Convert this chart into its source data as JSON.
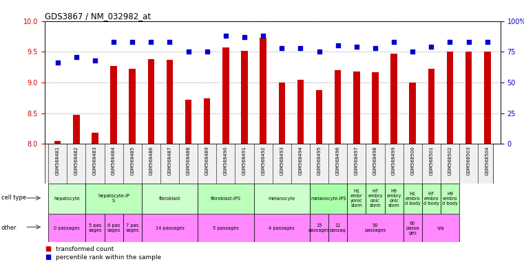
{
  "title": "GDS3867 / NM_032982_at",
  "samples": [
    "GSM568481",
    "GSM568482",
    "GSM568483",
    "GSM568484",
    "GSM568485",
    "GSM568486",
    "GSM568487",
    "GSM568488",
    "GSM568489",
    "GSM568490",
    "GSM568491",
    "GSM568492",
    "GSM568493",
    "GSM568494",
    "GSM568495",
    "GSM568496",
    "GSM568497",
    "GSM568498",
    "GSM568499",
    "GSM568500",
    "GSM568501",
    "GSM568502",
    "GSM568503",
    "GSM568504"
  ],
  "transformed_count": [
    8.05,
    8.47,
    8.18,
    9.27,
    9.22,
    9.38,
    9.37,
    8.72,
    8.74,
    9.57,
    9.52,
    9.73,
    9.0,
    9.05,
    8.88,
    9.2,
    9.18,
    9.17,
    9.47,
    9.0,
    9.22,
    9.5,
    9.5,
    9.5
  ],
  "percentile_rank": [
    66,
    71,
    68,
    83,
    83,
    83,
    83,
    75,
    75,
    88,
    87,
    88,
    78,
    78,
    75,
    80,
    79,
    78,
    83,
    75,
    79,
    83,
    83,
    83
  ],
  "ylim_left": [
    8.0,
    10.0
  ],
  "ylim_right": [
    0,
    100
  ],
  "yticks_left": [
    8.0,
    8.5,
    9.0,
    9.5,
    10.0
  ],
  "yticks_right": [
    0,
    25,
    50,
    75,
    100
  ],
  "bar_color": "#cc0000",
  "dot_color": "#0000cc",
  "bg_color": "#ffffff",
  "grid_color": "#888888",
  "tick_label_color_left": "#cc0000",
  "tick_label_color_right": "#0000cc",
  "ct_groups": [
    {
      "label": "hepatocyte",
      "start": 0,
      "end": 1,
      "color": "#ccffcc"
    },
    {
      "label": "hepatocyte-iP\nS",
      "start": 2,
      "end": 4,
      "color": "#bbffbb"
    },
    {
      "label": "fibroblast",
      "start": 5,
      "end": 7,
      "color": "#ccffcc"
    },
    {
      "label": "fibroblast-IPS",
      "start": 8,
      "end": 10,
      "color": "#bbffbb"
    },
    {
      "label": "melanocyte",
      "start": 11,
      "end": 13,
      "color": "#ccffcc"
    },
    {
      "label": "melanocyte-IPS",
      "start": 14,
      "end": 15,
      "color": "#aaffaa"
    },
    {
      "label": "H1\nembr\nyonic\nstem",
      "start": 16,
      "end": 16,
      "color": "#bbffbb"
    },
    {
      "label": "H7\nembry\nonic\nstem",
      "start": 17,
      "end": 17,
      "color": "#bbffbb"
    },
    {
      "label": "H9\nembry\nonic\nstem",
      "start": 18,
      "end": 18,
      "color": "#bbffbb"
    },
    {
      "label": "H1\nembro\nd body",
      "start": 19,
      "end": 19,
      "color": "#bbffbb"
    },
    {
      "label": "H7\nembro\nd body",
      "start": 20,
      "end": 20,
      "color": "#bbffbb"
    },
    {
      "label": "H9\nembro\nd body",
      "start": 21,
      "end": 21,
      "color": "#bbffbb"
    }
  ],
  "ot_groups": [
    {
      "label": "0 passages",
      "start": 0,
      "end": 1,
      "color": "#ff88ff"
    },
    {
      "label": "5 pas\nsages",
      "start": 2,
      "end": 2,
      "color": "#ff88ff"
    },
    {
      "label": "6 pas\nsages",
      "start": 3,
      "end": 3,
      "color": "#ff88ff"
    },
    {
      "label": "7 pas\nsages",
      "start": 4,
      "end": 4,
      "color": "#ff88ff"
    },
    {
      "label": "14 passages",
      "start": 5,
      "end": 7,
      "color": "#ff88ff"
    },
    {
      "label": "5 passages",
      "start": 8,
      "end": 10,
      "color": "#ff88ff"
    },
    {
      "label": "4 passages",
      "start": 11,
      "end": 13,
      "color": "#ff88ff"
    },
    {
      "label": "15\npassages",
      "start": 14,
      "end": 14,
      "color": "#ff88ff"
    },
    {
      "label": "11\npassag",
      "start": 15,
      "end": 15,
      "color": "#ff88ff"
    },
    {
      "label": "50\npassages",
      "start": 16,
      "end": 18,
      "color": "#ff88ff"
    },
    {
      "label": "60\npassa\nges",
      "start": 19,
      "end": 19,
      "color": "#ff88ff"
    },
    {
      "label": "n/a",
      "start": 20,
      "end": 21,
      "color": "#ff88ff"
    }
  ]
}
